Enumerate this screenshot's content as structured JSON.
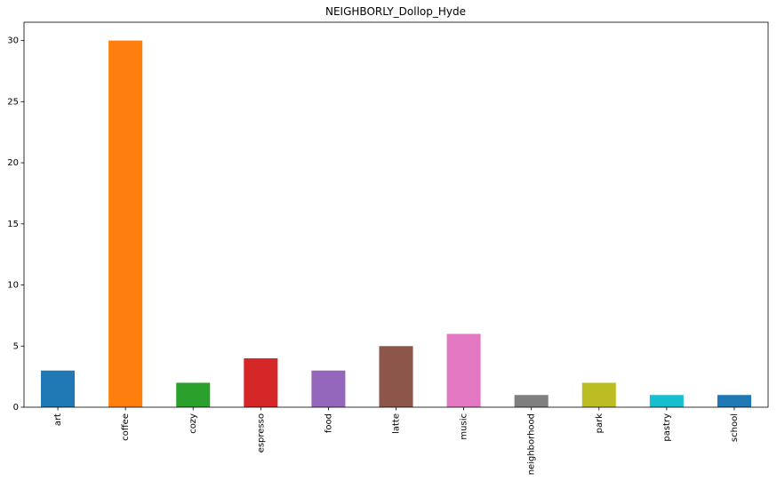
{
  "chart_data": {
    "type": "bar",
    "title": "NEIGHBORLY_Dollop_Hyde",
    "xlabel": "",
    "ylabel": "",
    "categories": [
      "art",
      "coffee",
      "cozy",
      "espresso",
      "food",
      "latte",
      "music",
      "neighborhood",
      "park",
      "pastry",
      "school"
    ],
    "values": [
      3,
      30,
      2,
      4,
      3,
      5,
      6,
      1,
      2,
      1,
      1
    ],
    "colors": [
      "#1f77b4",
      "#ff7f0e",
      "#2ca02c",
      "#d62728",
      "#9467bd",
      "#8c564b",
      "#e377c2",
      "#7f7f7f",
      "#bcbd22",
      "#17becf",
      "#1f77b4"
    ],
    "ylim": [
      0,
      31.5
    ],
    "yticks": [
      0,
      5,
      10,
      15,
      20,
      25,
      30
    ],
    "x_tick_rotation": 90,
    "grid": false,
    "legend": "none"
  }
}
